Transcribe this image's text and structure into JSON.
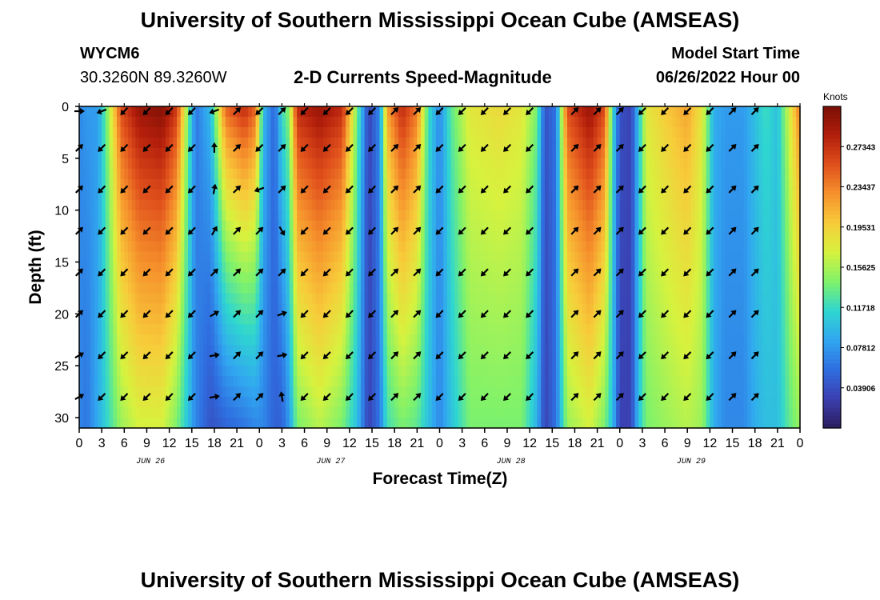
{
  "header": {
    "title": "University of Southern Mississippi Ocean Cube (AMSEAS)",
    "station_id": "WYCM6",
    "station_coords": "30.3260N  89.3260W",
    "subtitle": "2-D Currents Speed-Magnitude",
    "model_start_label": "Model Start Time",
    "model_start_value": "06/26/2022 Hour 00"
  },
  "footer": {
    "repeated_title": "University of Southern Mississippi Ocean Cube (AMSEAS)"
  },
  "colors": {
    "colormap": [
      "#2a1d5e",
      "#3b3fb0",
      "#2f6ee0",
      "#31a6f0",
      "#2fd6d0",
      "#7ff26a",
      "#d7f23e",
      "#f7cc3a",
      "#f6922c",
      "#e0501c",
      "#b21e0b",
      "#7a0f05"
    ],
    "arrow": "#000000",
    "axis": "#000000"
  },
  "chart_data": {
    "type": "heatmap",
    "title": "2-D Currents Speed-Magnitude",
    "xlabel": "Forecast Time(Z)",
    "ylabel": "Depth (ft)",
    "ylim": [
      0,
      31
    ],
    "yticks": [
      0,
      5,
      10,
      15,
      20,
      25,
      30
    ],
    "x_hours_range": [
      0,
      96
    ],
    "xtick_labels": [
      "0",
      "3",
      "6",
      "9",
      "12",
      "15",
      "18",
      "21",
      "0",
      "3",
      "6",
      "9",
      "12",
      "15",
      "18",
      "21",
      "0",
      "3",
      "6",
      "9",
      "12",
      "15",
      "18",
      "21",
      "0",
      "3",
      "6",
      "9",
      "12",
      "15",
      "18",
      "21",
      "0"
    ],
    "date_labels": [
      {
        "label": "JUN 26",
        "hour": 9.5
      },
      {
        "label": "JUN 27",
        "hour": 33.5
      },
      {
        "label": "JUN 28",
        "hour": 57.5
      },
      {
        "label": "JUN 29",
        "hour": 81.5
      }
    ],
    "colorbar": {
      "label": "Knots",
      "range": [
        0.0,
        0.3125
      ],
      "tick_values": [
        0.27343,
        0.23437,
        0.19531,
        0.15625,
        0.11718,
        0.07812,
        0.03906
      ],
      "tick_labels": [
        "0.27343",
        "0.23437",
        "0.19531",
        "0.15625",
        "0.11718",
        "0.07812",
        "0.03906"
      ]
    },
    "speed_profile": [
      {
        "hour": 0,
        "surface": 0.07,
        "bottom": 0.07
      },
      {
        "hour": 1,
        "surface": 0.08,
        "bottom": 0.06
      },
      {
        "hour": 2.5,
        "surface": 0.08,
        "bottom": 0.09
      },
      {
        "hour": 4,
        "surface": 0.16,
        "bottom": 0.12
      },
      {
        "hour": 5.5,
        "surface": 0.26,
        "bottom": 0.15
      },
      {
        "hour": 8,
        "surface": 0.3,
        "bottom": 0.17
      },
      {
        "hour": 11,
        "surface": 0.31,
        "bottom": 0.17
      },
      {
        "hour": 13,
        "surface": 0.27,
        "bottom": 0.14
      },
      {
        "hour": 14.5,
        "surface": 0.14,
        "bottom": 0.1
      },
      {
        "hour": 15.5,
        "surface": 0.06,
        "bottom": 0.07
      },
      {
        "hour": 17.5,
        "surface": 0.1,
        "bottom": 0.04
      },
      {
        "hour": 19.5,
        "surface": 0.25,
        "bottom": 0.05
      },
      {
        "hour": 22,
        "surface": 0.28,
        "bottom": 0.06
      },
      {
        "hour": 23.5,
        "surface": 0.25,
        "bottom": 0.07
      },
      {
        "hour": 24.5,
        "surface": 0.1,
        "bottom": 0.07
      },
      {
        "hour": 26,
        "surface": 0.05,
        "bottom": 0.05
      },
      {
        "hour": 27,
        "surface": 0.12,
        "bottom": 0.05
      },
      {
        "hour": 28,
        "surface": 0.15,
        "bottom": 0.08
      },
      {
        "hour": 29,
        "surface": 0.28,
        "bottom": 0.14
      },
      {
        "hour": 32,
        "surface": 0.3,
        "bottom": 0.16
      },
      {
        "hour": 35,
        "surface": 0.28,
        "bottom": 0.14
      },
      {
        "hour": 37,
        "surface": 0.14,
        "bottom": 0.1
      },
      {
        "hour": 38.5,
        "surface": 0.03,
        "bottom": 0.03
      },
      {
        "hour": 40,
        "surface": 0.07,
        "bottom": 0.06
      },
      {
        "hour": 41,
        "surface": 0.22,
        "bottom": 0.12
      },
      {
        "hour": 43,
        "surface": 0.28,
        "bottom": 0.14
      },
      {
        "hour": 45,
        "surface": 0.24,
        "bottom": 0.13
      },
      {
        "hour": 46.5,
        "surface": 0.12,
        "bottom": 0.1
      },
      {
        "hour": 48,
        "surface": 0.07,
        "bottom": 0.07
      },
      {
        "hour": 49.5,
        "surface": 0.13,
        "bottom": 0.1
      },
      {
        "hour": 52,
        "surface": 0.18,
        "bottom": 0.14
      },
      {
        "hour": 56,
        "surface": 0.19,
        "bottom": 0.14
      },
      {
        "hour": 59,
        "surface": 0.18,
        "bottom": 0.14
      },
      {
        "hour": 61,
        "surface": 0.14,
        "bottom": 0.09
      },
      {
        "hour": 62,
        "surface": 0.04,
        "bottom": 0.03
      },
      {
        "hour": 63.5,
        "surface": 0.06,
        "bottom": 0.06
      },
      {
        "hour": 65,
        "surface": 0.26,
        "bottom": 0.15
      },
      {
        "hour": 68,
        "surface": 0.3,
        "bottom": 0.17
      },
      {
        "hour": 70,
        "surface": 0.26,
        "bottom": 0.14
      },
      {
        "hour": 71,
        "surface": 0.12,
        "bottom": 0.1
      },
      {
        "hour": 72,
        "surface": 0.04,
        "bottom": 0.03
      },
      {
        "hour": 73.5,
        "surface": 0.03,
        "bottom": 0.03
      },
      {
        "hour": 74.5,
        "surface": 0.1,
        "bottom": 0.1
      },
      {
        "hour": 75.5,
        "surface": 0.18,
        "bottom": 0.14
      },
      {
        "hour": 78,
        "surface": 0.2,
        "bottom": 0.15
      },
      {
        "hour": 81,
        "surface": 0.22,
        "bottom": 0.16
      },
      {
        "hour": 83,
        "surface": 0.18,
        "bottom": 0.15
      },
      {
        "hour": 84.5,
        "surface": 0.09,
        "bottom": 0.09
      },
      {
        "hour": 86,
        "surface": 0.08,
        "bottom": 0.07
      },
      {
        "hour": 88.5,
        "surface": 0.08,
        "bottom": 0.07
      },
      {
        "hour": 90,
        "surface": 0.1,
        "bottom": 0.09
      },
      {
        "hour": 91.5,
        "surface": 0.12,
        "bottom": 0.1
      },
      {
        "hour": 93,
        "surface": 0.1,
        "bottom": 0.1
      },
      {
        "hour": 94.5,
        "surface": 0.17,
        "bottom": 0.13
      },
      {
        "hour": 96,
        "surface": 0.24,
        "bottom": 0.15
      }
    ],
    "arrow_depths_ft": [
      0,
      4,
      8,
      12,
      16,
      20,
      24,
      28
    ],
    "arrow_columns": [
      {
        "hour": 0,
        "angles_deg": [
          0,
          45,
          45,
          45,
          45,
          45,
          30,
          30
        ]
      },
      {
        "hour": 3,
        "angles_deg": [
          200,
          225,
          225,
          225,
          225,
          225,
          225,
          225
        ]
      },
      {
        "hour": 6,
        "angles_deg": [
          225,
          225,
          225,
          225,
          225,
          225,
          225,
          225
        ]
      },
      {
        "hour": 9,
        "angles_deg": [
          225,
          225,
          225,
          225,
          225,
          225,
          225,
          225
        ]
      },
      {
        "hour": 12,
        "angles_deg": [
          225,
          225,
          225,
          225,
          225,
          225,
          225,
          225
        ]
      },
      {
        "hour": 15,
        "angles_deg": [
          225,
          225,
          225,
          225,
          225,
          225,
          225,
          225
        ]
      },
      {
        "hour": 18,
        "angles_deg": [
          200,
          90,
          80,
          60,
          45,
          30,
          10,
          10
        ]
      },
      {
        "hour": 21,
        "angles_deg": [
          45,
          45,
          45,
          45,
          45,
          45,
          45,
          45
        ]
      },
      {
        "hour": 24,
        "angles_deg": [
          225,
          225,
          200,
          45,
          45,
          45,
          45,
          45
        ]
      },
      {
        "hour": 27,
        "angles_deg": [
          45,
          45,
          45,
          300,
          45,
          20,
          10,
          100
        ]
      },
      {
        "hour": 30,
        "angles_deg": [
          225,
          225,
          225,
          225,
          225,
          225,
          225,
          225
        ]
      },
      {
        "hour": 33,
        "angles_deg": [
          225,
          225,
          225,
          225,
          225,
          225,
          225,
          225
        ]
      },
      {
        "hour": 36,
        "angles_deg": [
          225,
          225,
          225,
          225,
          225,
          225,
          225,
          225
        ]
      },
      {
        "hour": 39,
        "angles_deg": [
          225,
          225,
          225,
          225,
          225,
          225,
          225,
          225
        ]
      },
      {
        "hour": 42,
        "angles_deg": [
          45,
          45,
          45,
          45,
          45,
          45,
          45,
          45
        ]
      },
      {
        "hour": 45,
        "angles_deg": [
          45,
          45,
          45,
          45,
          45,
          45,
          45,
          45
        ]
      },
      {
        "hour": 48,
        "angles_deg": [
          225,
          225,
          225,
          225,
          225,
          225,
          225,
          225
        ]
      },
      {
        "hour": 51,
        "angles_deg": [
          225,
          225,
          225,
          225,
          225,
          225,
          225,
          225
        ]
      },
      {
        "hour": 54,
        "angles_deg": [
          225,
          225,
          225,
          225,
          225,
          225,
          225,
          225
        ]
      },
      {
        "hour": 57,
        "angles_deg": [
          225,
          225,
          225,
          225,
          225,
          225,
          225,
          225
        ]
      },
      {
        "hour": 60,
        "angles_deg": [
          225,
          225,
          225,
          225,
          225,
          225,
          225,
          225
        ]
      },
      {
        "hour": 66,
        "angles_deg": [
          45,
          45,
          45,
          45,
          45,
          45,
          45,
          45
        ]
      },
      {
        "hour": 69,
        "angles_deg": [
          45,
          45,
          45,
          45,
          45,
          45,
          45,
          45
        ]
      },
      {
        "hour": 72,
        "angles_deg": [
          45,
          45,
          45,
          45,
          45,
          45,
          45,
          45
        ]
      },
      {
        "hour": 75,
        "angles_deg": [
          225,
          225,
          225,
          225,
          225,
          225,
          225,
          225
        ]
      },
      {
        "hour": 78,
        "angles_deg": [
          225,
          225,
          225,
          225,
          225,
          225,
          225,
          225
        ]
      },
      {
        "hour": 81,
        "angles_deg": [
          225,
          225,
          225,
          225,
          225,
          225,
          225,
          225
        ]
      },
      {
        "hour": 84,
        "angles_deg": [
          225,
          225,
          225,
          225,
          225,
          225,
          225,
          225
        ]
      },
      {
        "hour": 87,
        "angles_deg": [
          45,
          45,
          45,
          45,
          45,
          45,
          45,
          45
        ]
      },
      {
        "hour": 90,
        "angles_deg": [
          45,
          45,
          45,
          45,
          45,
          45,
          45,
          45
        ]
      }
    ]
  }
}
